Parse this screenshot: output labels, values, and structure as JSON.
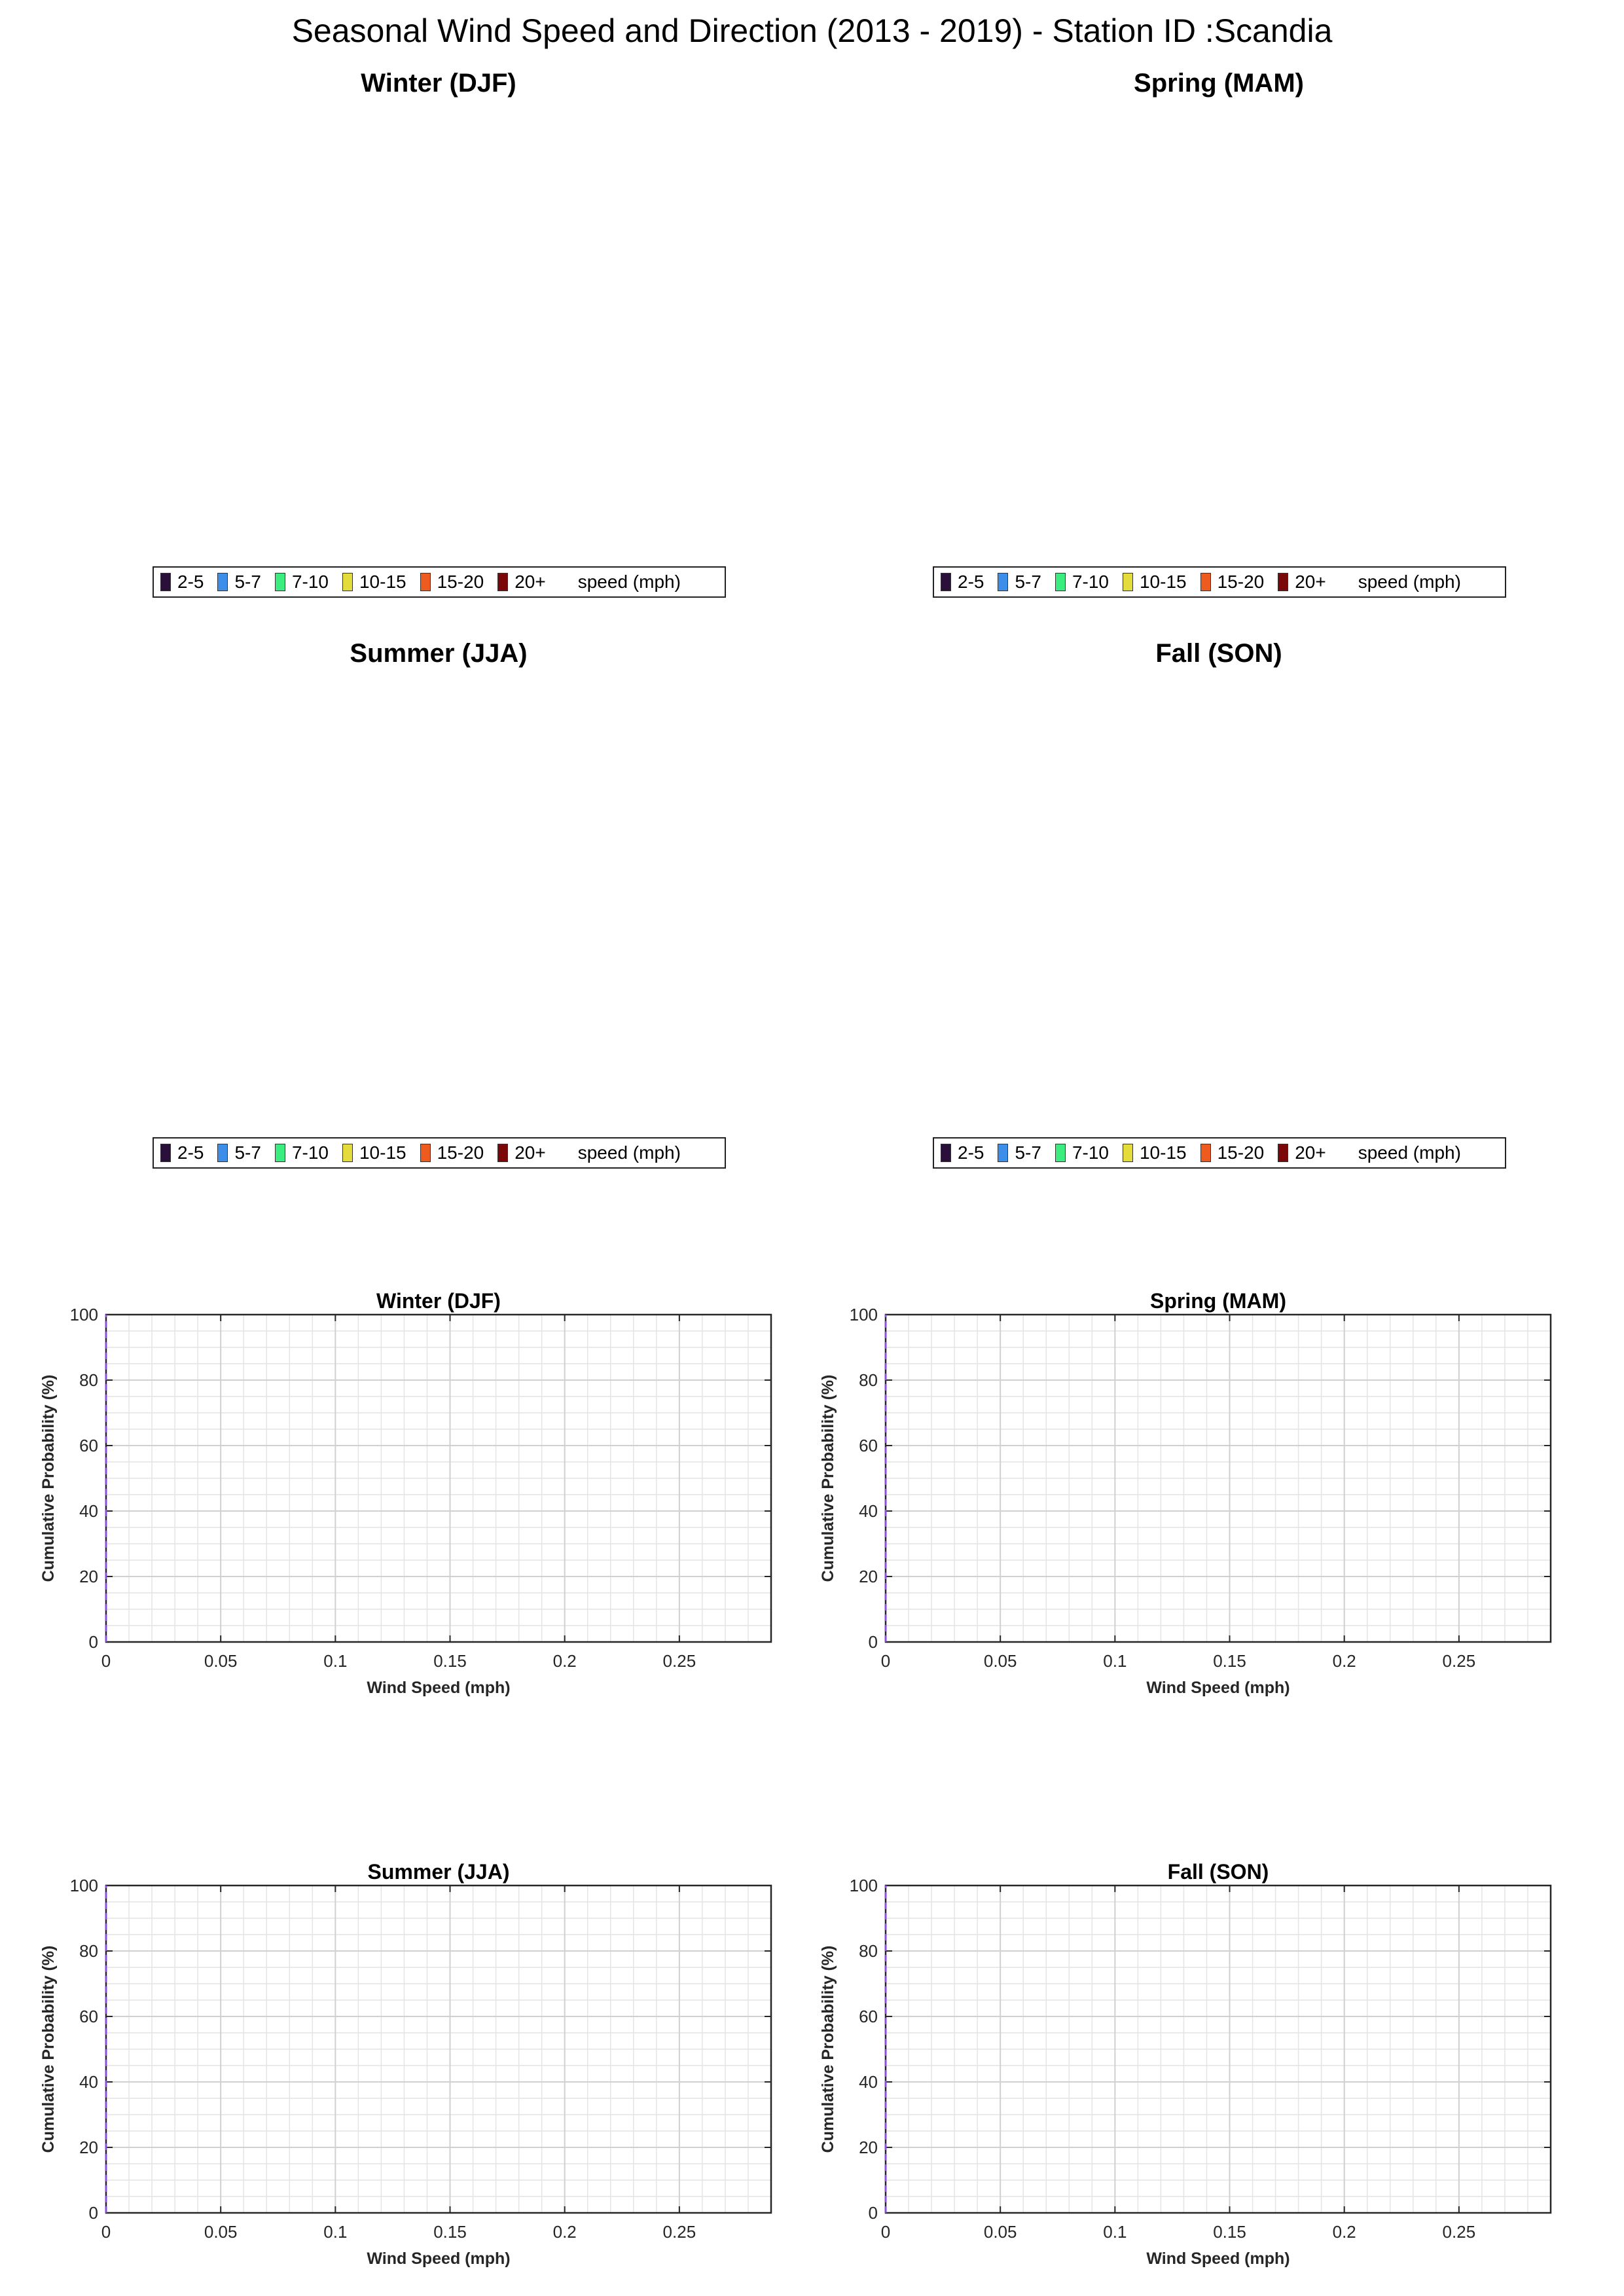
{
  "main_title": "Seasonal Wind Speed and Direction (2013 - 2019) - Station ID :Scandia",
  "rose_panels": [
    {
      "title": "Winter (DJF)"
    },
    {
      "title": "Spring (MAM)"
    },
    {
      "title": "Summer (JJA)"
    },
    {
      "title": "Fall (SON)"
    }
  ],
  "legend": {
    "items": [
      {
        "label": "2-5",
        "color": "#2a0f3a"
      },
      {
        "label": "5-7",
        "color": "#3d8ee8"
      },
      {
        "label": "7-10",
        "color": "#3bed7f"
      },
      {
        "label": "10-15",
        "color": "#e3dc3a"
      },
      {
        "label": "15-20",
        "color": "#ee5b1e"
      },
      {
        "label": "20+",
        "color": "#7a0808"
      }
    ],
    "unit_label": "speed (mph)"
  },
  "chart_data": [
    {
      "type": "line",
      "title": "Winter (DJF)",
      "xlabel": "Wind Speed (mph)",
      "ylabel": "Cumulative Probability (%)",
      "xlim": [
        0,
        0.29
      ],
      "ylim": [
        0,
        100
      ],
      "xticks": [
        "0",
        "0.05",
        "0.1",
        "0.15",
        "0.2",
        "0.25"
      ],
      "yticks": [
        "0",
        "20",
        "40",
        "60",
        "80",
        "100"
      ],
      "grid": "on",
      "series": [
        {
          "x": [
            0,
            0
          ],
          "y": [
            0,
            100
          ],
          "color": "#8a4fd6",
          "style": "dashed"
        }
      ]
    },
    {
      "type": "line",
      "title": "Spring (MAM)",
      "xlabel": "Wind Speed (mph)",
      "ylabel": "Cumulative Probability (%)",
      "xlim": [
        0,
        0.29
      ],
      "ylim": [
        0,
        100
      ],
      "xticks": [
        "0",
        "0.05",
        "0.1",
        "0.15",
        "0.2",
        "0.25"
      ],
      "yticks": [
        "0",
        "20",
        "40",
        "60",
        "80",
        "100"
      ],
      "grid": "on",
      "series": [
        {
          "x": [
            0,
            0
          ],
          "y": [
            0,
            100
          ],
          "color": "#8a4fd6",
          "style": "dashed"
        }
      ]
    },
    {
      "type": "line",
      "title": "Summer (JJA)",
      "xlabel": "Wind Speed (mph)",
      "ylabel": "Cumulative Probability (%)",
      "xlim": [
        0,
        0.29
      ],
      "ylim": [
        0,
        100
      ],
      "xticks": [
        "0",
        "0.05",
        "0.1",
        "0.15",
        "0.2",
        "0.25"
      ],
      "yticks": [
        "0",
        "20",
        "40",
        "60",
        "80",
        "100"
      ],
      "grid": "on",
      "series": [
        {
          "x": [
            0,
            0
          ],
          "y": [
            0,
            100
          ],
          "color": "#8a4fd6",
          "style": "dashed"
        }
      ]
    },
    {
      "type": "line",
      "title": "Fall (SON)",
      "xlabel": "Wind Speed (mph)",
      "ylabel": "Cumulative Probability (%)",
      "xlim": [
        0,
        0.29
      ],
      "ylim": [
        0,
        100
      ],
      "xticks": [
        "0",
        "0.05",
        "0.1",
        "0.15",
        "0.2",
        "0.25"
      ],
      "yticks": [
        "0",
        "20",
        "40",
        "60",
        "80",
        "100"
      ],
      "grid": "on",
      "series": [
        {
          "x": [
            0,
            0
          ],
          "y": [
            0,
            100
          ],
          "color": "#8a4fd6",
          "style": "dashed"
        }
      ]
    }
  ]
}
